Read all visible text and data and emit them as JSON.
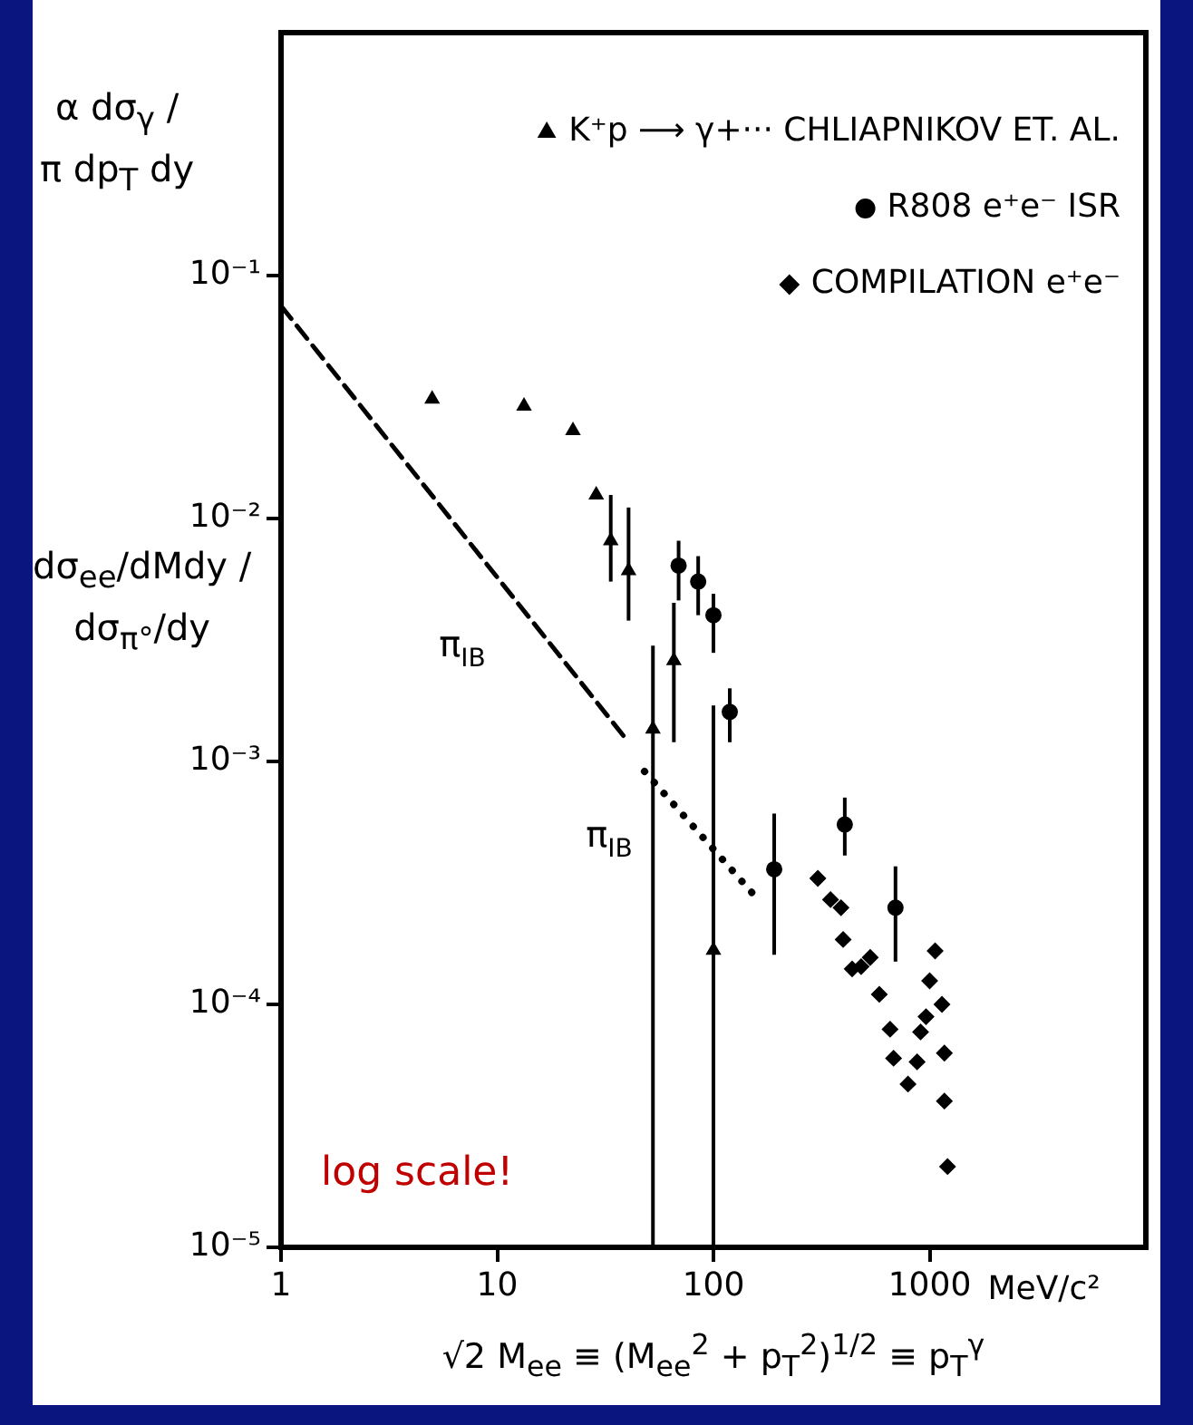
{
  "chart_data": {
    "type": "scatter",
    "xlabel": "√2  M$_{ee}$ ≡ (M$_{ee}$$^{2}$ + p$_{T}$$^{2}$)$^{1/2}$ ≡ p$_{T}$$^{γ}$",
    "ylabel": "dσ$_{ee}$/dMdy / dσ$_{π°}$/dy",
    "annotations": [
      "α dσ$_{γ}$ / π dp$_{T}$ dy",
      "log scale!",
      "MeV/c²",
      "π$_{IB}$",
      "π$_{IB}$"
    ],
    "xlim": [
      1,
      10000
    ],
    "xticks": [
      1,
      10,
      100,
      1000
    ],
    "ylim": [
      1e-05,
      1
    ],
    "yticks": [
      {
        "value": 0.1,
        "label": "10⁻¹"
      },
      {
        "value": 0.01,
        "label": "10⁻²"
      },
      {
        "value": 0.001,
        "label": "10⁻³"
      },
      {
        "value": 0.0001,
        "label": "10⁻⁴"
      },
      {
        "value": 1e-05,
        "label": "10⁻⁵"
      }
    ],
    "log": "xy",
    "grid": false,
    "legend": "top right",
    "series": [
      {
        "name": "K⁺p ⟶ γ+··· CHLIAPNIKOV ET. AL.",
        "type": "scatter",
        "marker": "triangle",
        "color": "#000000",
        "x": [
          5.0,
          13.3,
          22.4,
          28.7,
          33.5,
          40.5,
          52.5,
          65.6,
          100
        ],
        "values": [
          0.031,
          0.029,
          0.023,
          0.0125,
          0.0081,
          0.0061,
          0.00136,
          0.0026,
          0.000167
        ],
        "errors": [
          null,
          null,
          null,
          null,
          [
            0.0055,
            0.0125
          ],
          [
            0.0038,
            0.0111
          ],
          [
            1e-05,
            0.003
          ],
          [
            0.0012,
            0.0045
          ],
          [
            1e-05,
            0.0017
          ]
        ]
      },
      {
        "name": "R808 e⁺e⁻ ISR",
        "type": "scatter",
        "marker": "circle",
        "color": "#000000",
        "x": [
          69,
          85,
          100,
          119,
          191,
          405,
          695
        ],
        "values": [
          0.0064,
          0.0055,
          0.004,
          0.0016,
          0.00036,
          0.00055,
          0.00025
        ],
        "errors": [
          [
            0.0046,
            0.0081
          ],
          [
            0.004,
            0.007
          ],
          [
            0.0028,
            0.0049
          ],
          [
            0.0012,
            0.002
          ],
          [
            0.00016,
            0.00061
          ],
          [
            0.00041,
            0.00071
          ],
          [
            0.00015,
            0.00037
          ]
        ]
      },
      {
        "name": "COMPILATION e⁺e⁻",
        "type": "scatter",
        "marker": "diamond",
        "color": "#000000",
        "x": [
          304,
          348,
          389,
          398,
          438,
          482,
          531,
          585,
          656,
          681,
          794,
          875,
          908,
          962,
          1000,
          1060,
          1140,
          1170,
          1170,
          1210
        ],
        "values": [
          0.00033,
          0.00027,
          0.00025,
          0.000185,
          0.00014,
          0.000143,
          0.000156,
          0.00011,
          7.9e-05,
          6e-05,
          4.7e-05,
          5.8e-05,
          7.7e-05,
          8.9e-05,
          0.000125,
          0.000166,
          0.0001,
          6.3e-05,
          4e-05,
          2.15e-05
        ]
      },
      {
        "type": "line",
        "marker": "none",
        "line_style": "dashed",
        "color": "#000000",
        "x": [
          1,
          40.5
        ],
        "values": [
          0.075,
          0.0012
        ]
      },
      {
        "type": "line",
        "marker": "none",
        "line_style": "dotted",
        "color": "#000000",
        "x": [
          48,
          158
        ],
        "values": [
          0.00091,
          0.000275
        ]
      }
    ]
  }
}
